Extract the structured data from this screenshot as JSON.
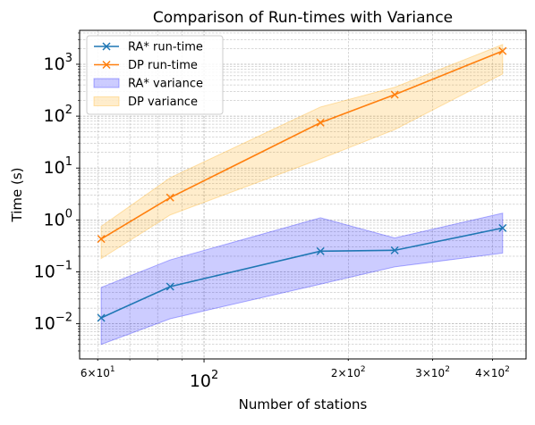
{
  "chart_data": {
    "type": "line",
    "title": "Comparison of Run-times with Variance",
    "xlabel": "Number of stations",
    "ylabel": "Time (s)",
    "xscale": "log",
    "yscale": "log",
    "xlim": [
      55,
      470
    ],
    "ylim": [
      0.0021,
      4500
    ],
    "grid": "on (major and minor)",
    "legend_position": "top-left",
    "x_ticks": [
      {
        "value": 60,
        "base": "6×10",
        "exp": "1",
        "major": false
      },
      {
        "value": 100,
        "base": "10",
        "exp": "2",
        "major": true
      },
      {
        "value": 200,
        "base": "2×10",
        "exp": "2",
        "major": false
      },
      {
        "value": 300,
        "base": "3×10",
        "exp": "2",
        "major": false
      },
      {
        "value": 400,
        "base": "4×10",
        "exp": "2",
        "major": false
      }
    ],
    "y_ticks": [
      {
        "value": 0.01,
        "base": "10",
        "exp": "−2"
      },
      {
        "value": 0.1,
        "base": "10",
        "exp": "−1"
      },
      {
        "value": 1,
        "base": "10",
        "exp": "0"
      },
      {
        "value": 10,
        "base": "10",
        "exp": "1"
      },
      {
        "value": 100,
        "base": "10",
        "exp": "2"
      },
      {
        "value": 1000,
        "base": "10",
        "exp": "3"
      }
    ],
    "x": [
      61,
      85,
      175,
      250,
      420
    ],
    "series": [
      {
        "name": "RA* run-time",
        "color": "#1f77b4",
        "marker": "x",
        "values": [
          0.013,
          0.052,
          0.25,
          0.26,
          0.7
        ],
        "variance_name": "RA* variance",
        "variance_color": "#0000ff",
        "variance_opacity": 0.2,
        "variance_lower": [
          0.004,
          0.0125,
          0.058,
          0.125,
          0.23
        ],
        "variance_upper": [
          0.05,
          0.17,
          1.1,
          0.45,
          1.35
        ]
      },
      {
        "name": "DP run-time",
        "color": "#ff7f0e",
        "marker": "x",
        "values": [
          0.43,
          2.7,
          75,
          260,
          1800
        ],
        "variance_name": "DP variance",
        "variance_color": "#ffa500",
        "variance_opacity": 0.2,
        "variance_lower": [
          0.18,
          1.25,
          15,
          55,
          650
        ],
        "variance_upper": [
          0.75,
          6.5,
          150,
          360,
          2400
        ]
      }
    ]
  }
}
